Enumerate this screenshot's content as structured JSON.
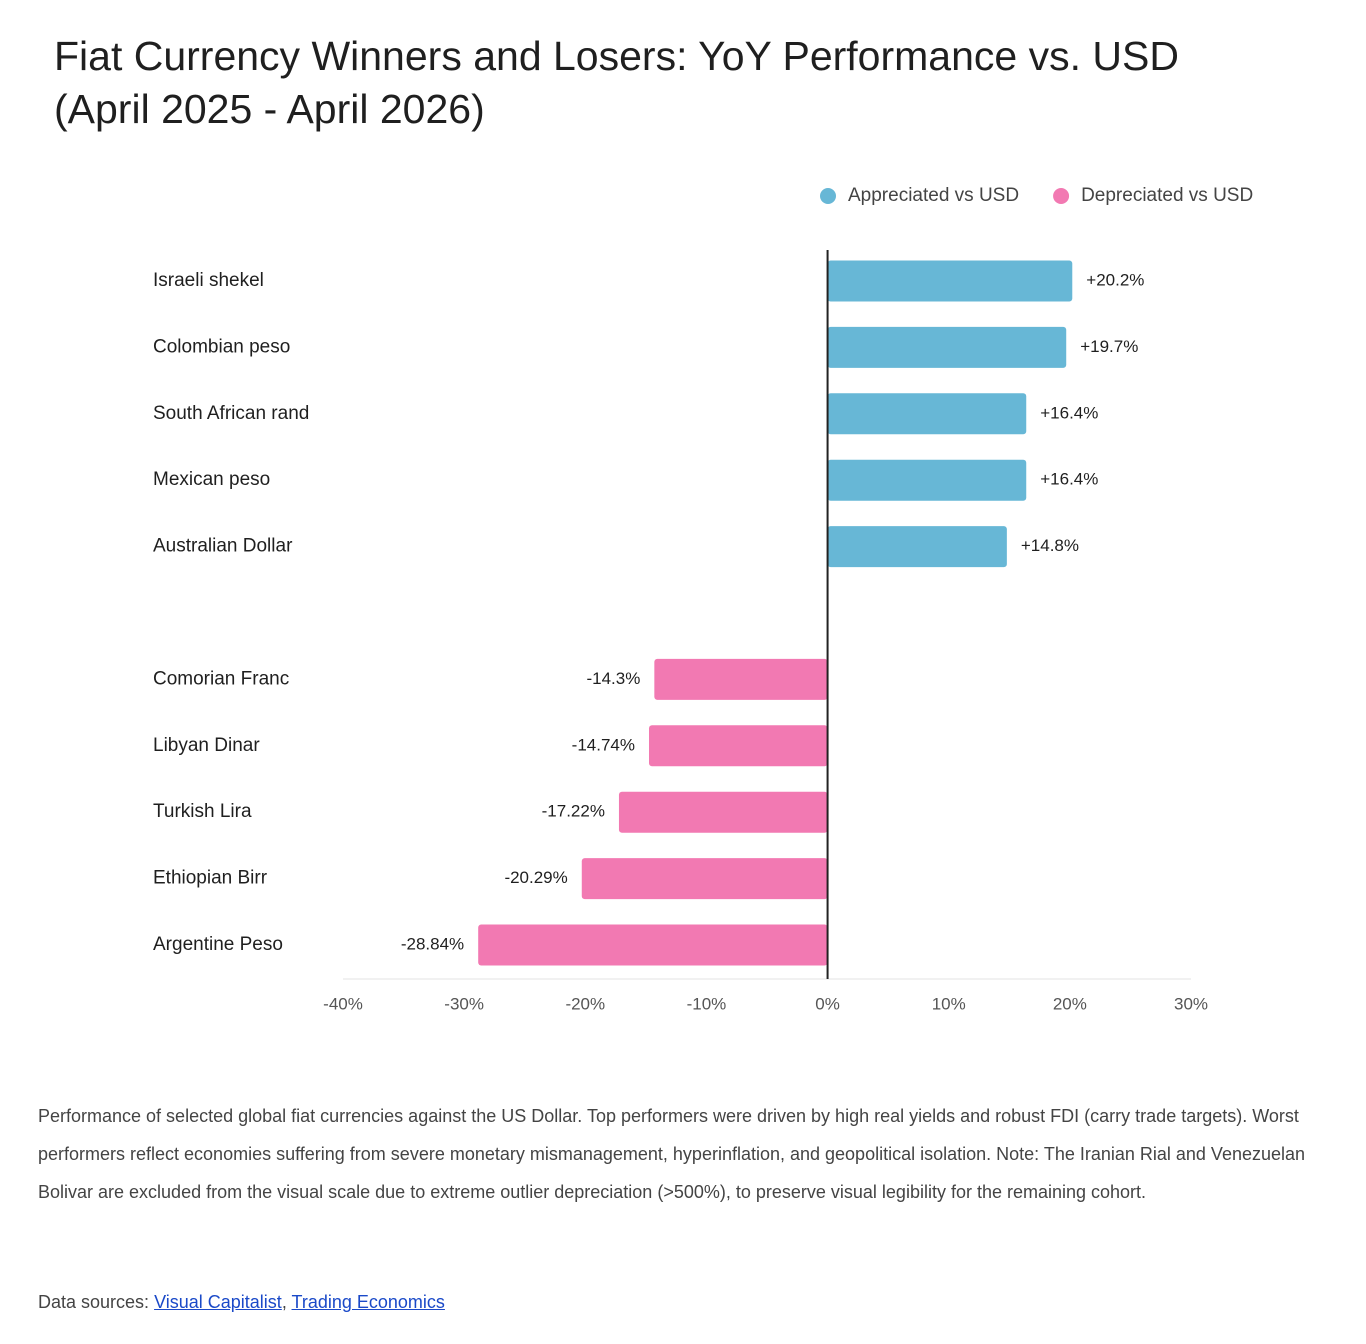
{
  "chart_data": {
    "type": "hbar",
    "title": "Fiat Currency Winners and Losers: YoY Performance vs. USD (April 2025 - April 2026)",
    "categories": [
      "Israeli shekel",
      "Colombian peso",
      "South African rand",
      "Mexican peso",
      "Australian Dollar",
      null,
      "Comorian Franc",
      "Libyan Dinar",
      "Turkish Lira",
      "Ethiopian Birr",
      "Argentine Peso"
    ],
    "series": [
      {
        "name": "Appreciated vs USD",
        "color": "#67b7d6",
        "values": [
          20.2,
          19.7,
          16.4,
          16.4,
          14.8,
          null,
          null,
          null,
          null,
          null,
          null
        ],
        "value_labels": [
          "+20.2%",
          "+19.7%",
          "+16.4%",
          "+16.4%",
          "+14.8%",
          null,
          null,
          null,
          null,
          null,
          null
        ]
      },
      {
        "name": "Depreciated vs USD",
        "color": "#f279b2",
        "values": [
          null,
          null,
          null,
          null,
          null,
          null,
          -14.3,
          -14.74,
          -17.22,
          -20.29,
          -28.84
        ],
        "value_labels": [
          null,
          null,
          null,
          null,
          null,
          null,
          "-14.3%",
          "-14.74%",
          "-17.22%",
          "-20.29%",
          "-28.84%"
        ]
      }
    ],
    "xlim": [
      -40,
      30
    ],
    "xticks": [
      {
        "value": -40,
        "label": "-40%"
      },
      {
        "value": -30,
        "label": "-30%"
      },
      {
        "value": -20,
        "label": "-20%"
      },
      {
        "value": -10,
        "label": "-10%"
      },
      {
        "value": 0,
        "label": "0%"
      },
      {
        "value": 10,
        "label": "10%"
      },
      {
        "value": 20,
        "label": "20%"
      },
      {
        "value": 30,
        "label": "30%"
      }
    ],
    "legend": "top-right"
  },
  "caption": "Performance of selected global fiat currencies against the US Dollar. Top performers were driven by high real yields and robust FDI (carry trade targets). Worst performers reflect economies suffering from severe monetary mismanagement, hyperinflation, and geopolitical isolation. Note: The Iranian Rial and Venezuelan Bolivar are excluded from the visual scale due to extreme outlier depreciation (>500%), to preserve visual legibility for the remaining cohort.",
  "sources": {
    "label": "Data sources:",
    "links": [
      "Visual Capitalist",
      "Trading Economics"
    ],
    "separator": ","
  }
}
